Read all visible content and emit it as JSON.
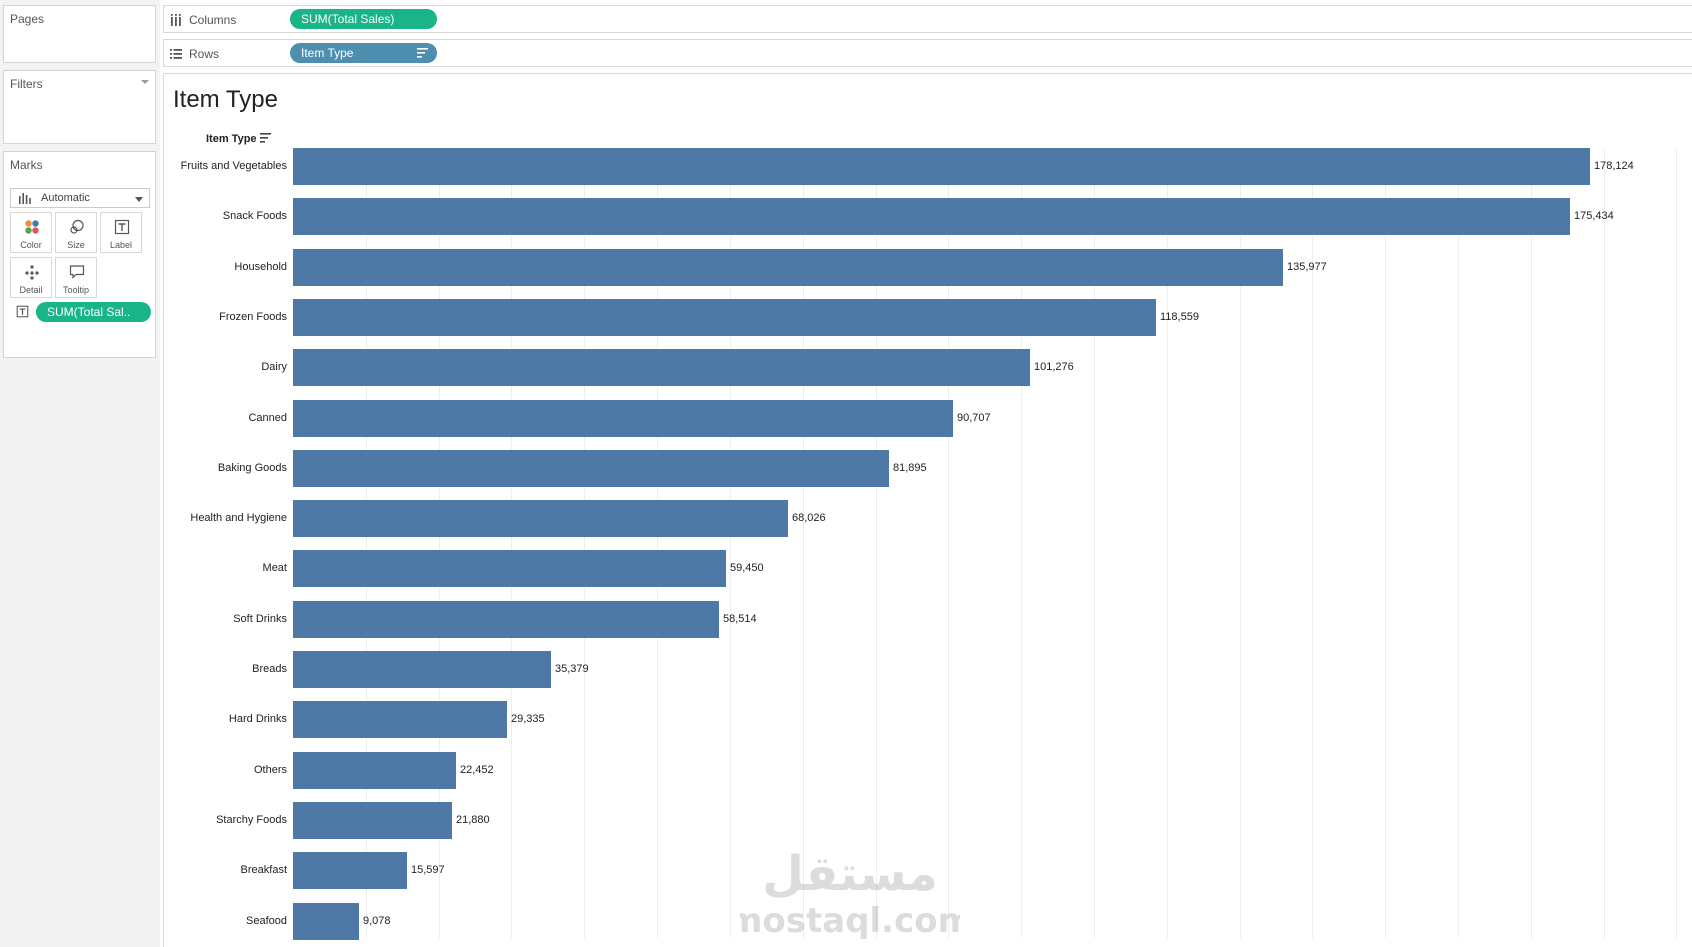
{
  "panels": {
    "pages": {
      "title": "Pages"
    },
    "filters": {
      "title": "Filters"
    },
    "marks": {
      "title": "Marks",
      "mark_type": "Automatic",
      "buttons": [
        "Color",
        "Size",
        "Label",
        "Detail",
        "Tooltip"
      ],
      "label_pill": "SUM(Total Sal.."
    }
  },
  "shelves": {
    "columns": {
      "label": "Columns",
      "pill": "SUM(Total Sales)"
    },
    "rows": {
      "label": "Rows",
      "pill": "Item Type"
    }
  },
  "sheet": {
    "title": "Item Type",
    "row_header": "Item Type"
  },
  "colors": {
    "bar": "#4e79a7",
    "measure_pill": "#19b488",
    "dimension_pill": "#4e8fb0"
  },
  "watermark": {
    "arabic": "مستقل",
    "latin": "mostaql.com"
  },
  "chart_data": {
    "type": "bar",
    "orientation": "horizontal",
    "title": "Item Type",
    "ylabel": "Item Type",
    "xlabel": "",
    "categories": [
      "Fruits and Vegetables",
      "Snack Foods",
      "Household",
      "Frozen Foods",
      "Dairy",
      "Canned",
      "Baking Goods",
      "Health and Hygiene",
      "Meat",
      "Soft Drinks",
      "Breads",
      "Hard Drinks",
      "Others",
      "Starchy Foods",
      "Breakfast",
      "Seafood"
    ],
    "values": [
      178124,
      175434,
      135977,
      118559,
      101276,
      90707,
      81895,
      68026,
      59450,
      58514,
      35379,
      29335,
      22452,
      21880,
      15597,
      9078
    ],
    "value_labels": [
      "178,124",
      "175,434",
      "135,977",
      "118,559",
      "101,276",
      "90,707",
      "81,895",
      "68,026",
      "59,450",
      "58,514",
      "35,379",
      "29,335",
      "22,452",
      "21,880",
      "15,597",
      "9,078"
    ],
    "xlim": [
      0,
      200000
    ],
    "grid": true,
    "sorted": "descending"
  }
}
